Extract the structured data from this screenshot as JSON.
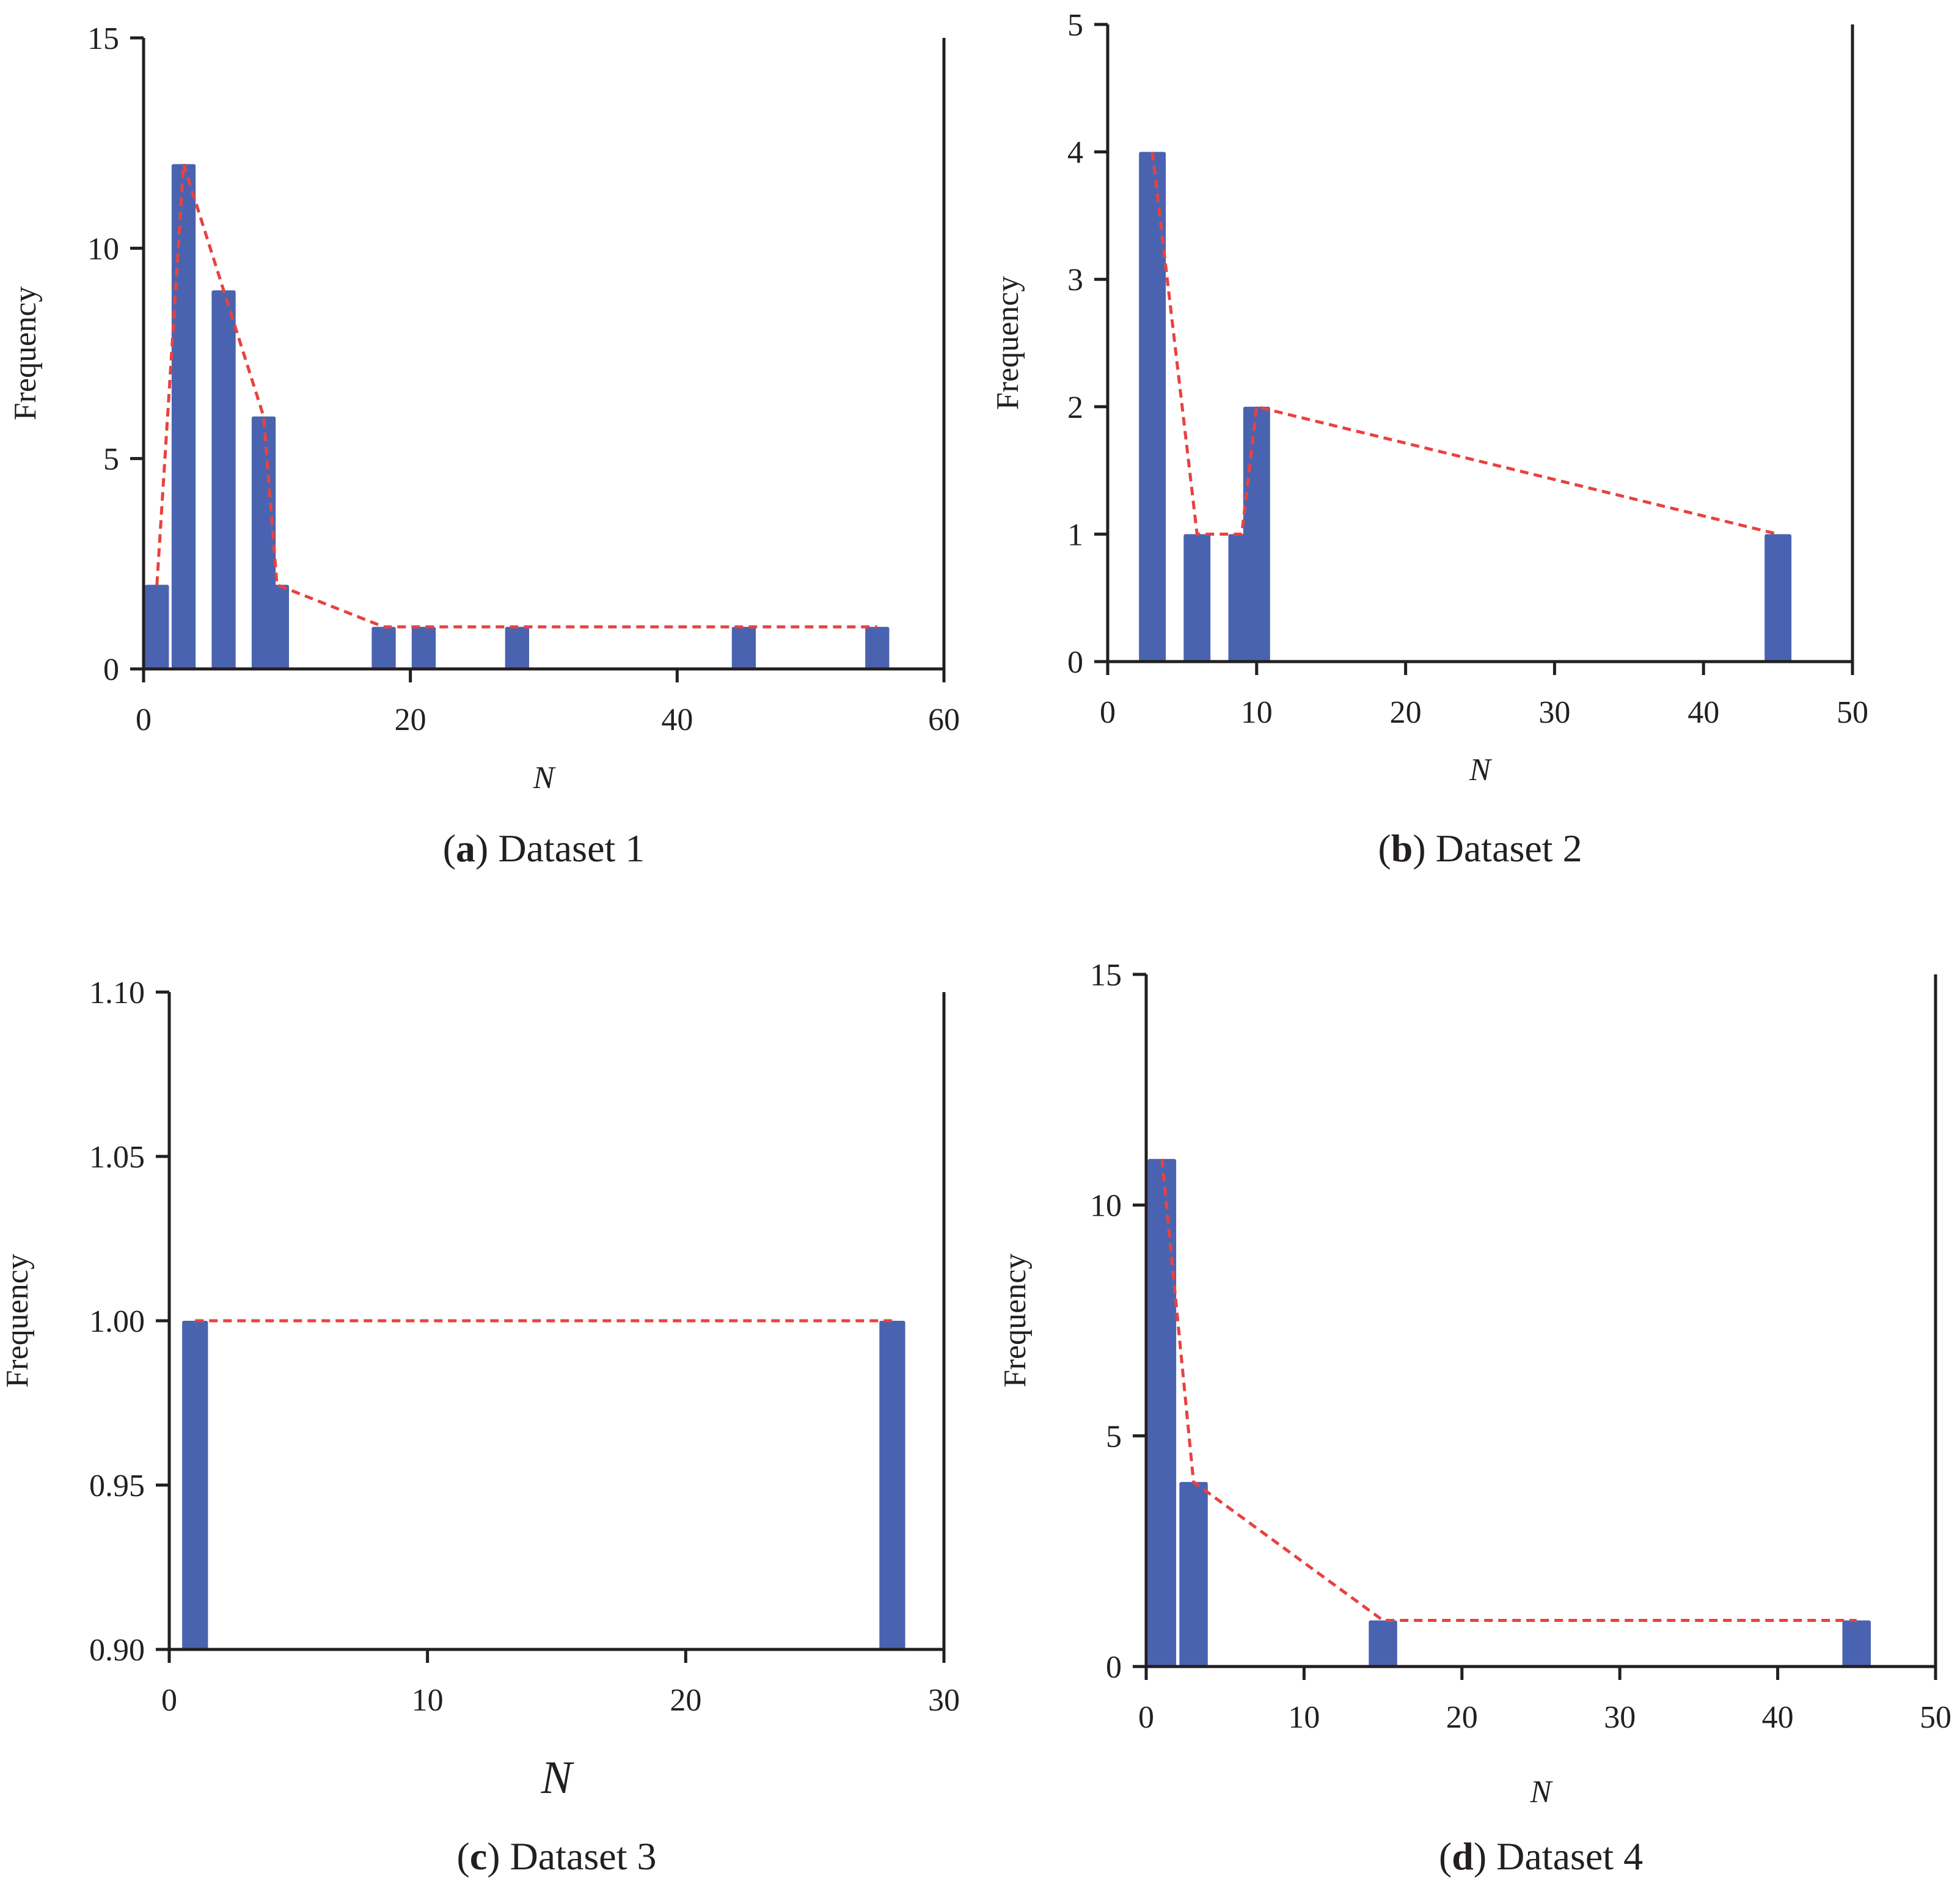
{
  "figure": {
    "bar_color": "#4a63b0",
    "line_color": "#e8423f",
    "axis_color": "#231f20"
  },
  "chart_data": [
    {
      "type": "bar",
      "panel": "a",
      "caption_letter": "a",
      "caption_text": "Dataset 1",
      "title": "",
      "xlabel": "N",
      "ylabel": "Frequency",
      "xlim": [
        0,
        60
      ],
      "ylim": [
        0,
        15
      ],
      "xticks": [
        0,
        20,
        40,
        60
      ],
      "yticks": [
        0,
        5,
        10,
        15
      ],
      "ytick_labels": [
        "0",
        "5",
        "10",
        "15"
      ],
      "bar_width": 1.8,
      "x": [
        1,
        3,
        6,
        9,
        10,
        18,
        21,
        28,
        45,
        55
      ],
      "values": [
        2,
        12,
        9,
        6,
        2,
        1,
        1,
        1,
        1,
        1
      ],
      "series": [
        {
          "name": "Frequency",
          "style": "bar"
        },
        {
          "name": "Trend",
          "style": "dashed-line"
        }
      ]
    },
    {
      "type": "bar",
      "panel": "b",
      "caption_letter": "b",
      "caption_text": "Dataset 2",
      "title": "",
      "xlabel": "N",
      "ylabel": "Frequency",
      "xlim": [
        0,
        50
      ],
      "ylim": [
        0,
        5
      ],
      "xticks": [
        0,
        10,
        20,
        30,
        40,
        50
      ],
      "yticks": [
        0,
        1,
        2,
        3,
        4,
        5
      ],
      "ytick_labels": [
        "0",
        "1",
        "2",
        "3",
        "4",
        "5"
      ],
      "bar_width": 1.8,
      "x": [
        3,
        6,
        9,
        10,
        45
      ],
      "values": [
        4,
        1,
        1,
        2,
        1
      ],
      "series": [
        {
          "name": "Frequency",
          "style": "bar"
        },
        {
          "name": "Trend",
          "style": "dashed-line"
        }
      ]
    },
    {
      "type": "bar",
      "panel": "c",
      "caption_letter": "c",
      "caption_text": "Dataset 3",
      "title": "",
      "xlabel": "N",
      "ylabel": "Frequency",
      "xlim": [
        0,
        30
      ],
      "ylim": [
        0.9,
        1.1
      ],
      "xticks": [
        0,
        10,
        20,
        30
      ],
      "yticks": [
        0.9,
        0.95,
        1.0,
        1.05,
        1.1
      ],
      "ytick_labels": [
        "0.90",
        "0.95",
        "1.00",
        "1.05",
        "1.10"
      ],
      "bar_width": 1.0,
      "x": [
        1,
        28
      ],
      "values": [
        1,
        1
      ],
      "series": [
        {
          "name": "Frequency",
          "style": "bar"
        },
        {
          "name": "Trend",
          "style": "dashed-line"
        }
      ]
    },
    {
      "type": "bar",
      "panel": "d",
      "caption_letter": "d",
      "caption_text": "Dataset 4",
      "title": "",
      "xlabel": "N",
      "ylabel": "Frequency",
      "xlim": [
        0,
        50
      ],
      "ylim": [
        0,
        15
      ],
      "xticks": [
        0,
        10,
        20,
        30,
        40,
        50
      ],
      "yticks": [
        0,
        5,
        10,
        15
      ],
      "ytick_labels": [
        "0",
        "5",
        "10",
        "15"
      ],
      "bar_width": 1.8,
      "x": [
        1,
        3,
        15,
        45
      ],
      "values": [
        11,
        4,
        1,
        1
      ],
      "series": [
        {
          "name": "Frequency",
          "style": "bar"
        },
        {
          "name": "Trend",
          "style": "dashed-line"
        }
      ]
    }
  ]
}
